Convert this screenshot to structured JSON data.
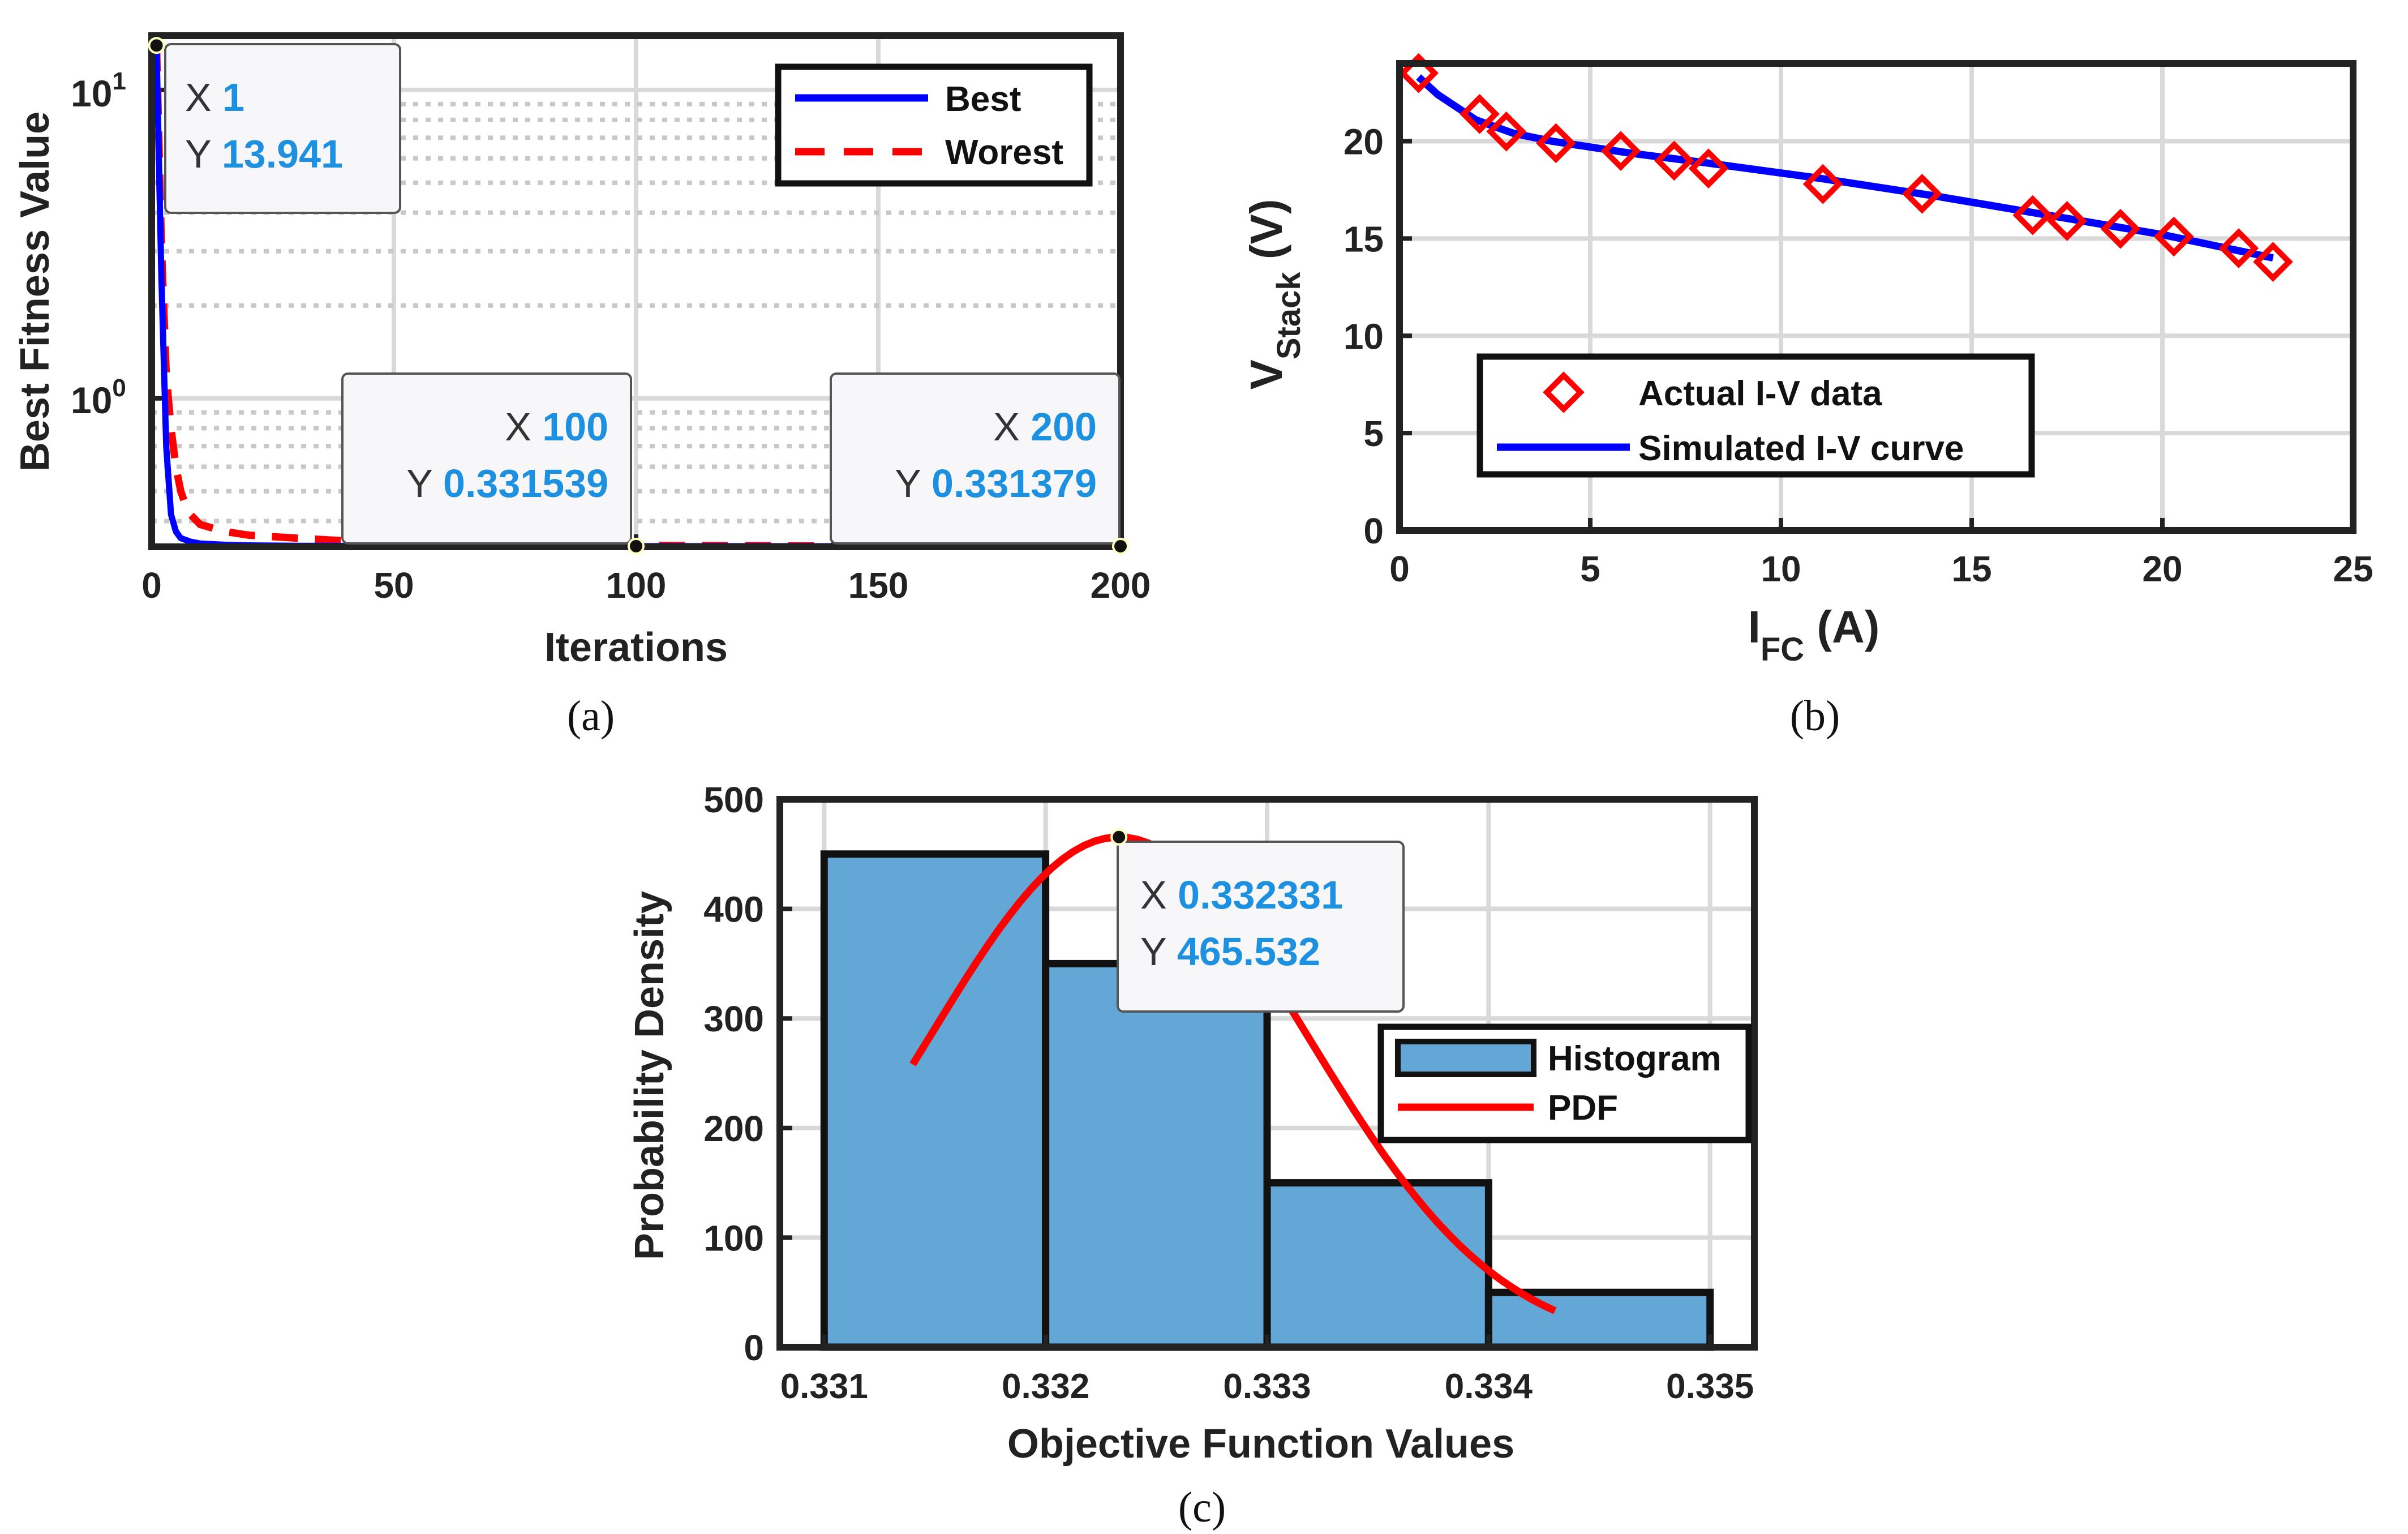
{
  "colors": {
    "best": "#0000ff",
    "worst": "#ff0000",
    "histFill": "#63a7d6",
    "pdf": "#ff0000",
    "actualMarker": "#ff0000",
    "simLine": "#0000ff",
    "tipValue": "#1e90e0",
    "frame": "#222222",
    "grid": "#d9d9d9"
  },
  "chart_data": [
    {
      "id": "a",
      "type": "line",
      "caption": "(a)",
      "xlabel": "Iterations",
      "ylabel": "Best Fitness Value",
      "yscale": "log",
      "xlim": [
        0,
        200
      ],
      "ylim": [
        0.33,
        15
      ],
      "xticks": [
        0,
        50,
        100,
        150,
        200
      ],
      "yticks": [
        {
          "value": 1,
          "base": "10",
          "exp": "0"
        },
        {
          "value": 10,
          "base": "10",
          "exp": "1"
        }
      ],
      "grid": true,
      "legend": {
        "position": "top-right",
        "items": [
          "Best",
          "Worest"
        ]
      },
      "series": [
        {
          "name": "Best",
          "style": "solid",
          "x": [
            1,
            2,
            3,
            4,
            5,
            6,
            8,
            10,
            15,
            20,
            30,
            50,
            100,
            150,
            200
          ],
          "y": [
            13.941,
            2.5,
            0.7,
            0.42,
            0.37,
            0.352,
            0.343,
            0.338,
            0.335,
            0.3335,
            0.3325,
            0.332,
            0.331539,
            0.3314,
            0.331379
          ]
        },
        {
          "name": "Worest",
          "style": "dashed",
          "x": [
            1,
            2,
            3,
            4,
            5,
            6,
            7,
            8,
            10,
            15,
            20,
            30,
            40,
            50,
            100,
            150,
            200
          ],
          "y": [
            13.941,
            3.2,
            1.2,
            0.8,
            0.6,
            0.5,
            0.45,
            0.42,
            0.39,
            0.37,
            0.36,
            0.352,
            0.345,
            0.34,
            0.3335,
            0.3318,
            0.3314
          ]
        }
      ],
      "datatips": [
        {
          "x": 1,
          "y": 13.941,
          "xText": "1",
          "yText": "13.941"
        },
        {
          "x": 100,
          "y": 0.331539,
          "xText": "100",
          "yText": "0.331539"
        },
        {
          "x": 200,
          "y": 0.331379,
          "xText": "200",
          "yText": "0.331379"
        }
      ]
    },
    {
      "id": "b",
      "type": "scatter+line",
      "caption": "(b)",
      "xlabel": "I",
      "xlabelSub": "FC",
      "xlabelTail": " (A)",
      "ylabel": "V",
      "ylabelSub": "Stack",
      "ylabelTail": " (V)",
      "xlim": [
        0,
        25
      ],
      "ylim": [
        0,
        24
      ],
      "xticks": [
        0,
        5,
        10,
        15,
        20,
        25
      ],
      "yticks": [
        0,
        5,
        10,
        15,
        20
      ],
      "grid": true,
      "legend": {
        "position": "bottom-left",
        "items": [
          "Actual I-V data",
          "Simulated I-V curve"
        ]
      },
      "series": [
        {
          "name": "Actual I-V data",
          "marker": "diamond",
          "x": [
            0.5,
            2.1,
            2.8,
            4.1,
            5.8,
            7.2,
            8.1,
            11.1,
            13.7,
            16.6,
            17.5,
            18.9,
            20.3,
            22.0,
            22.9
          ],
          "y": [
            23.5,
            21.4,
            20.5,
            19.9,
            19.5,
            19.0,
            18.6,
            17.8,
            17.3,
            16.2,
            15.9,
            15.5,
            15.1,
            14.5,
            13.8
          ]
        },
        {
          "name": "Simulated I-V curve",
          "style": "solid",
          "x": [
            0.5,
            1.0,
            2.0,
            3.0,
            4.0,
            6.0,
            8.0,
            11.0,
            14.0,
            17.0,
            20.0,
            22.9
          ],
          "y": [
            23.3,
            22.4,
            21.1,
            20.4,
            20.0,
            19.4,
            18.9,
            18.1,
            17.2,
            16.2,
            15.2,
            14.0
          ]
        }
      ]
    },
    {
      "id": "c",
      "type": "bar",
      "caption": "(c)",
      "xlabel": "Objective Function Values",
      "ylabel": "Probability Density",
      "xlim": [
        0.3308,
        0.3352
      ],
      "ylim": [
        0,
        500
      ],
      "xticks": [
        0.331,
        0.332,
        0.333,
        0.334,
        0.335
      ],
      "xtickLabels": [
        "0.331",
        "0.332",
        "0.333",
        "0.334",
        "0.335"
      ],
      "yticks": [
        0,
        100,
        200,
        300,
        400,
        500
      ],
      "grid": true,
      "legend": {
        "position": "right",
        "items": [
          "Histogram",
          "PDF"
        ]
      },
      "bins": [
        {
          "from": 0.331,
          "to": 0.332,
          "value": 450
        },
        {
          "from": 0.332,
          "to": 0.333,
          "value": 350
        },
        {
          "from": 0.333,
          "to": 0.334,
          "value": 150
        },
        {
          "from": 0.334,
          "to": 0.335,
          "value": 50
        }
      ],
      "pdf": {
        "name": "PDF",
        "mean": 0.332331,
        "peak": 465.532,
        "sigma": 0.000857,
        "xFrom": 0.3314,
        "xTo": 0.3343
      },
      "datatips": [
        {
          "x": 0.332331,
          "y": 465.532,
          "xText": "0.332331",
          "yText": "465.532"
        }
      ]
    }
  ]
}
